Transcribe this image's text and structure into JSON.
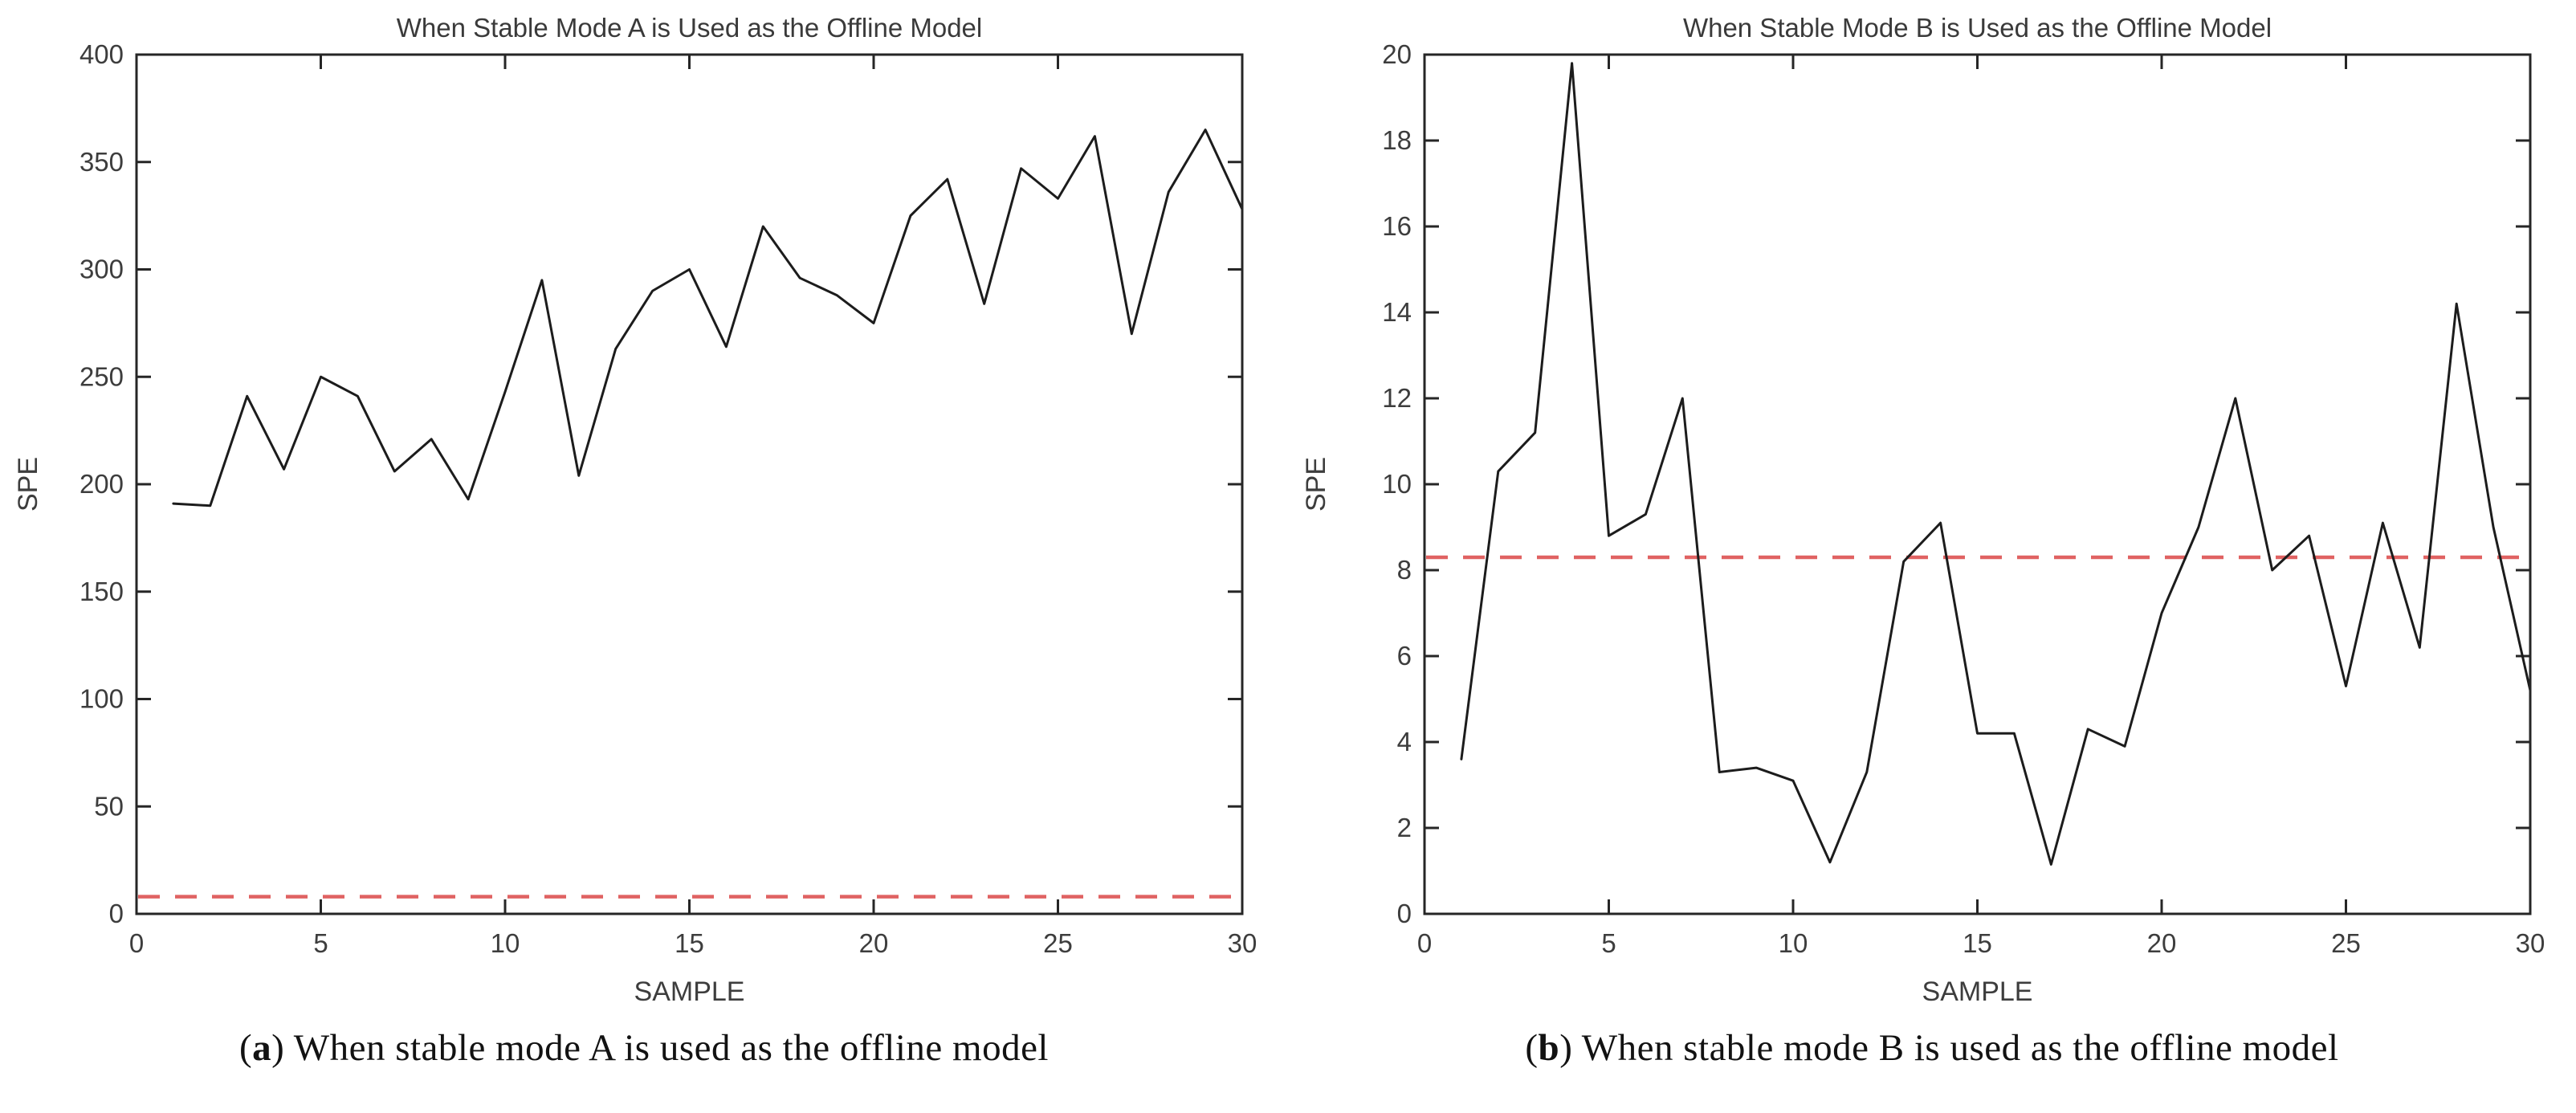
{
  "figure": {
    "captions": [
      {
        "open": "(",
        "letter": "a",
        "close": ")",
        "text": " When stable mode A is used as the offline model"
      },
      {
        "open": "(",
        "letter": "b",
        "close": ")",
        "text": " When stable mode B is used as the offline model"
      }
    ]
  },
  "colors": {
    "background": "#ffffff",
    "series": "#1c1c1c",
    "threshold": "#e06262",
    "axis": "#262626",
    "tick_text": "#3d3d3d",
    "title_text": "#3a3a3a"
  },
  "chart_data": [
    {
      "type": "line",
      "title": "When Stable Mode A is Used as the Offline Model",
      "xlabel": "SAMPLE",
      "ylabel": "SPE",
      "xlim": [
        0,
        30
      ],
      "ylim": [
        0,
        400
      ],
      "xticks": [
        0,
        5,
        10,
        15,
        20,
        25,
        30
      ],
      "yticks": [
        0,
        50,
        100,
        150,
        200,
        250,
        300,
        350,
        400
      ],
      "grid": false,
      "legend": "none",
      "x": [
        1,
        2,
        3,
        4,
        5,
        6,
        7,
        8,
        9,
        10,
        11,
        12,
        13,
        14,
        15,
        16,
        17,
        18,
        19,
        20,
        21,
        22,
        23,
        24,
        25,
        26,
        27,
        28,
        29,
        30
      ],
      "series": [
        {
          "name": "SPE",
          "values": [
            191,
            190,
            241,
            207,
            250,
            241,
            206,
            221,
            193,
            243,
            295,
            204,
            263,
            290,
            300,
            264,
            320,
            296,
            288,
            275,
            325,
            342,
            284,
            347,
            333,
            362,
            270,
            336,
            365,
            328
          ]
        }
      ],
      "threshold": {
        "name": "control limit",
        "value": 8,
        "style": "dashed"
      }
    },
    {
      "type": "line",
      "title": "When Stable Mode B is Used as the Offline Model",
      "xlabel": "SAMPLE",
      "ylabel": "SPE",
      "xlim": [
        0,
        30
      ],
      "ylim": [
        0,
        20
      ],
      "xticks": [
        0,
        5,
        10,
        15,
        20,
        25,
        30
      ],
      "yticks": [
        0,
        2,
        4,
        6,
        8,
        10,
        12,
        14,
        16,
        18,
        20
      ],
      "grid": false,
      "legend": "none",
      "x": [
        1,
        2,
        3,
        4,
        5,
        6,
        7,
        8,
        9,
        10,
        11,
        12,
        13,
        14,
        15,
        16,
        17,
        18,
        19,
        20,
        21,
        22,
        23,
        24,
        25,
        26,
        27,
        28,
        29,
        30
      ],
      "series": [
        {
          "name": "SPE",
          "values": [
            3.6,
            10.3,
            11.2,
            19.8,
            8.8,
            9.3,
            12,
            3.3,
            3.4,
            3.1,
            1.2,
            3.3,
            8.2,
            9.1,
            4.2,
            4.2,
            1.15,
            4.3,
            3.9,
            7,
            9,
            12,
            8,
            8.8,
            5.3,
            9.1,
            6.2,
            14.2,
            9,
            5.2
          ]
        }
      ],
      "threshold": {
        "name": "control limit",
        "value": 8.3,
        "style": "dashed"
      }
    }
  ]
}
